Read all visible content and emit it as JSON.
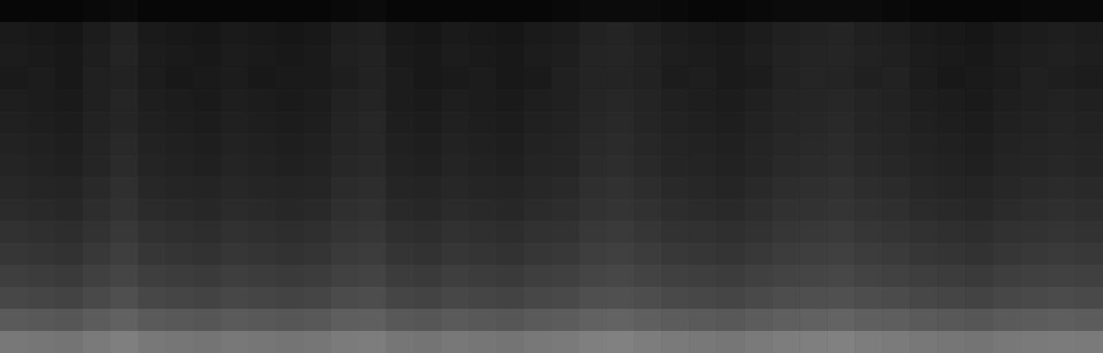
{
  "chart_data": {
    "type": "heatmap",
    "tick_labels": false,
    "zlim": [
      0,
      100
    ],
    "cells": [
      [
        4,
        4,
        4,
        5,
        6,
        4,
        4,
        4,
        4,
        4,
        4,
        4,
        5,
        6,
        4,
        4,
        4,
        4,
        4,
        4,
        5,
        6,
        6,
        6,
        5,
        4,
        4,
        5,
        6,
        6,
        6,
        6,
        5,
        4,
        4,
        4,
        4,
        5,
        5,
        5
      ],
      [
        14,
        13,
        12,
        15,
        18,
        14,
        13,
        12,
        14,
        13,
        12,
        13,
        16,
        17,
        13,
        12,
        14,
        13,
        12,
        14,
        15,
        18,
        19,
        17,
        15,
        14,
        13,
        15,
        17,
        18,
        19,
        17,
        16,
        14,
        13,
        12,
        14,
        15,
        16,
        15
      ],
      [
        15,
        14,
        13,
        16,
        19,
        15,
        14,
        13,
        15,
        14,
        13,
        14,
        17,
        18,
        14,
        13,
        15,
        14,
        13,
        15,
        16,
        19,
        20,
        18,
        16,
        15,
        14,
        16,
        18,
        19,
        20,
        18,
        17,
        15,
        14,
        13,
        15,
        16,
        17,
        16
      ],
      [
        14,
        15,
        13,
        17,
        18,
        15,
        13,
        14,
        15,
        13,
        14,
        14,
        16,
        18,
        15,
        13,
        14,
        15,
        13,
        14,
        17,
        19,
        19,
        18,
        15,
        16,
        14,
        15,
        18,
        20,
        19,
        17,
        18,
        15,
        13,
        14,
        15,
        17,
        16,
        15
      ],
      [
        16,
        15,
        14,
        17,
        20,
        16,
        15,
        14,
        16,
        15,
        14,
        15,
        18,
        19,
        15,
        14,
        16,
        15,
        14,
        16,
        17,
        20,
        21,
        19,
        17,
        16,
        15,
        17,
        19,
        20,
        21,
        19,
        18,
        16,
        15,
        14,
        16,
        17,
        18,
        17
      ],
      [
        17,
        16,
        15,
        18,
        20,
        17,
        16,
        15,
        17,
        16,
        15,
        16,
        19,
        21,
        16,
        15,
        17,
        16,
        15,
        17,
        18,
        21,
        22,
        20,
        18,
        17,
        16,
        18,
        20,
        21,
        22,
        20,
        19,
        17,
        16,
        15,
        17,
        18,
        19,
        18
      ],
      [
        18,
        17,
        16,
        19,
        22,
        18,
        17,
        16,
        18,
        17,
        16,
        17,
        20,
        21,
        17,
        16,
        18,
        17,
        16,
        18,
        19,
        22,
        23,
        21,
        19,
        18,
        17,
        19,
        21,
        22,
        23,
        21,
        20,
        18,
        17,
        16,
        18,
        19,
        20,
        19
      ],
      [
        19,
        18,
        17,
        20,
        23,
        19,
        18,
        17,
        19,
        18,
        17,
        18,
        21,
        22,
        18,
        17,
        19,
        18,
        17,
        19,
        20,
        23,
        24,
        22,
        20,
        19,
        18,
        20,
        22,
        23,
        24,
        22,
        21,
        19,
        18,
        17,
        19,
        20,
        21,
        20
      ],
      [
        21,
        20,
        19,
        22,
        25,
        21,
        20,
        19,
        21,
        20,
        19,
        20,
        23,
        24,
        20,
        19,
        21,
        20,
        19,
        21,
        22,
        25,
        26,
        24,
        22,
        21,
        20,
        22,
        24,
        25,
        26,
        24,
        23,
        21,
        20,
        19,
        21,
        22,
        23,
        22
      ],
      [
        23,
        22,
        21,
        24,
        27,
        23,
        22,
        21,
        23,
        22,
        21,
        22,
        25,
        26,
        22,
        21,
        23,
        22,
        21,
        23,
        24,
        27,
        28,
        26,
        24,
        23,
        22,
        24,
        26,
        27,
        28,
        26,
        25,
        23,
        22,
        21,
        23,
        24,
        25,
        24
      ],
      [
        26,
        25,
        24,
        27,
        30,
        26,
        25,
        24,
        26,
        25,
        24,
        25,
        28,
        29,
        25,
        24,
        26,
        25,
        24,
        26,
        27,
        30,
        31,
        29,
        27,
        26,
        25,
        27,
        29,
        30,
        31,
        29,
        28,
        26,
        25,
        24,
        26,
        27,
        28,
        27
      ],
      [
        29,
        28,
        27,
        30,
        33,
        29,
        28,
        27,
        29,
        28,
        27,
        28,
        31,
        32,
        28,
        27,
        29,
        28,
        27,
        29,
        30,
        33,
        34,
        32,
        30,
        29,
        28,
        30,
        32,
        33,
        34,
        32,
        31,
        29,
        28,
        27,
        29,
        30,
        31,
        30
      ],
      [
        33,
        32,
        31,
        34,
        37,
        33,
        32,
        31,
        33,
        32,
        31,
        32,
        35,
        36,
        32,
        31,
        33,
        32,
        31,
        33,
        34,
        37,
        38,
        36,
        34,
        33,
        32,
        34,
        36,
        37,
        38,
        36,
        35,
        33,
        32,
        31,
        33,
        34,
        35,
        34
      ],
      [
        38,
        37,
        36,
        39,
        42,
        38,
        37,
        36,
        38,
        37,
        36,
        37,
        40,
        41,
        37,
        36,
        38,
        37,
        36,
        38,
        39,
        42,
        43,
        41,
        39,
        38,
        37,
        39,
        41,
        42,
        43,
        41,
        40,
        38,
        37,
        36,
        38,
        39,
        40,
        39
      ],
      [
        48,
        47,
        46,
        49,
        52,
        48,
        47,
        46,
        48,
        47,
        46,
        47,
        50,
        51,
        47,
        46,
        48,
        47,
        46,
        48,
        49,
        52,
        53,
        51,
        49,
        48,
        47,
        49,
        51,
        52,
        53,
        51,
        50,
        48,
        47,
        46,
        48,
        49,
        50,
        49
      ],
      [
        64,
        63,
        62,
        65,
        68,
        64,
        63,
        62,
        64,
        63,
        62,
        63,
        66,
        67,
        63,
        62,
        64,
        63,
        62,
        64,
        65,
        68,
        69,
        67,
        65,
        64,
        63,
        65,
        67,
        68,
        69,
        67,
        66,
        64,
        63,
        62,
        64,
        65,
        66,
        65
      ]
    ]
  }
}
